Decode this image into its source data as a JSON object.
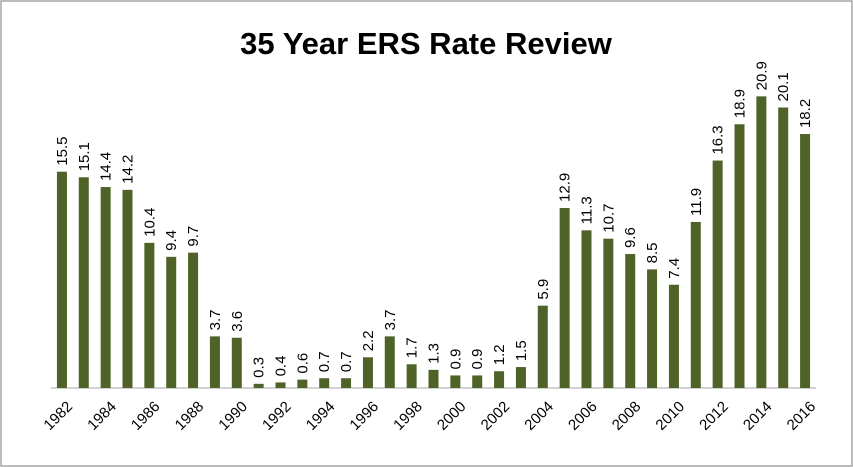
{
  "chart_data": {
    "type": "bar",
    "title": "35 Year ERS Rate Review",
    "categories": [
      "1982",
      null,
      "1984",
      null,
      "1986",
      null,
      "1988",
      null,
      "1990",
      null,
      "1992",
      null,
      "1994",
      null,
      "1996",
      null,
      "1998",
      null,
      "2000",
      null,
      "2002",
      null,
      "2004",
      null,
      "2006",
      null,
      "2008",
      null,
      "2010",
      null,
      "2012",
      null,
      "2014",
      null,
      "2016"
    ],
    "values": [
      15.5,
      15.1,
      14.4,
      14.2,
      10.4,
      9.4,
      9.7,
      3.7,
      3.6,
      0.3,
      0.4,
      0.6,
      0.7,
      0.7,
      2.2,
      3.7,
      1.7,
      1.3,
      0.9,
      0.9,
      1.2,
      1.5,
      5.9,
      12.9,
      11.3,
      10.7,
      9.6,
      8.5,
      7.4,
      11.9,
      16.3,
      18.9,
      20.9,
      20.1,
      18.2
    ],
    "color": "#4f6228",
    "ylim": [
      0,
      22
    ]
  }
}
